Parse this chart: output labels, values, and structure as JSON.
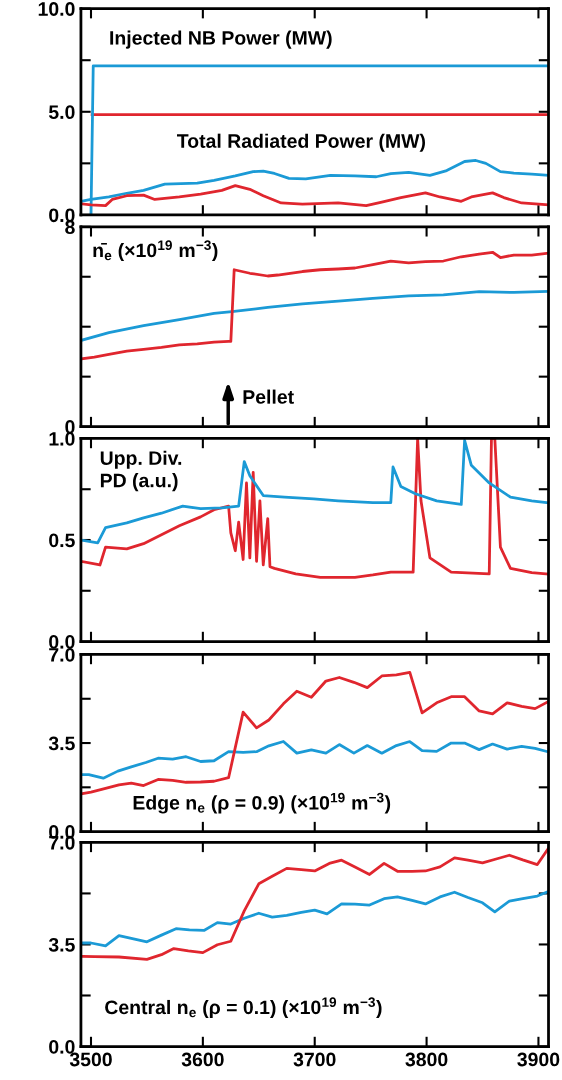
{
  "chart_data": [
    {
      "type": "line",
      "xlim": [
        3491,
        3909
      ],
      "xticks": [
        3500,
        3600,
        3700,
        3800,
        3900
      ],
      "ylim": [
        0,
        10
      ],
      "yticks": [
        {
          "value": 0,
          "label": "0.0"
        },
        {
          "value": 2.5,
          "label": null
        },
        {
          "value": 5,
          "label": "5.0"
        },
        {
          "value": 7.5,
          "label": null
        },
        {
          "value": 10,
          "label": "10.0"
        }
      ],
      "tick_labels": "y",
      "annotations": [
        "Injected NB Power (MW)",
        "Total Radiated Power (MW)"
      ],
      "series": [
        {
          "color": "#1b9ad6",
          "x": [
            3491,
            3500,
            3516,
            3532,
            3547,
            3566,
            3595,
            3610,
            3629,
            3645,
            3654,
            3664,
            3677,
            3692,
            3714,
            3736,
            3755,
            3768,
            3784,
            3803,
            3818,
            3834,
            3844,
            3853,
            3866,
            3878,
            3894,
            3909
          ],
          "values": [
            0.66,
            0.75,
            0.87,
            1.05,
            1.19,
            1.49,
            1.54,
            1.68,
            1.89,
            2.1,
            2.12,
            2.01,
            1.77,
            1.75,
            1.92,
            1.89,
            1.85,
            2.0,
            2.06,
            1.92,
            2.15,
            2.59,
            2.64,
            2.5,
            2.1,
            2.03,
            1.98,
            1.92
          ]
        },
        {
          "color": "#e0262e",
          "x": [
            3501,
            3909
          ],
          "values": [
            4.86,
            4.86
          ]
        },
        {
          "color": "#1b9ad6",
          "x": [
            3500,
            3502,
            3909
          ],
          "values": [
            0,
            7.22,
            7.22
          ]
        },
        {
          "color": "#e0262e",
          "x": [
            3491,
            3500,
            3513,
            3519,
            3532,
            3547,
            3557,
            3579,
            3598,
            3617,
            3629,
            3642,
            3654,
            3670,
            3689,
            3721,
            3746,
            3759,
            3777,
            3799,
            3812,
            3831,
            3840,
            3859,
            3869,
            3885,
            3908
          ],
          "values": [
            0.54,
            0.49,
            0.45,
            0.75,
            0.93,
            0.96,
            0.75,
            0.87,
            1.01,
            1.19,
            1.42,
            1.24,
            0.93,
            0.58,
            0.52,
            0.58,
            0.45,
            0.61,
            0.84,
            1.07,
            0.87,
            0.66,
            0.87,
            1.07,
            0.84,
            0.58,
            0.49
          ]
        }
      ]
    },
    {
      "type": "line",
      "xlim": [
        3491,
        3909
      ],
      "xticks": [
        3500,
        3600,
        3700,
        3800,
        3900
      ],
      "ylim": [
        0,
        8
      ],
      "yticks": [
        0,
        {
          "value": 2,
          "label": null
        },
        {
          "value": 4,
          "label": null
        },
        {
          "value": 6,
          "label": null
        },
        8
      ],
      "tick_labels": "y",
      "annotations": [
        "n̄$_{e}$ (×10$^{19}$ m$^{−3}$)",
        "Pellet"
      ],
      "series": [
        {
          "color": "#1b9ad6",
          "x": [
            3491,
            3516,
            3547,
            3579,
            3610,
            3626,
            3658,
            3689,
            3721,
            3752,
            3784,
            3815,
            3847,
            3878,
            3908
          ],
          "values": [
            3.45,
            3.76,
            4.04,
            4.28,
            4.53,
            4.6,
            4.77,
            4.91,
            5.02,
            5.13,
            5.23,
            5.27,
            5.4,
            5.37,
            5.41
          ]
        },
        {
          "color": "#e0262e",
          "x": [
            3491,
            3503,
            3516,
            3532,
            3547,
            3563,
            3579,
            3595,
            3610,
            3623,
            3625,
            3628,
            3642,
            3658,
            3667,
            3689,
            3705,
            3721,
            3736,
            3752,
            3768,
            3784,
            3799,
            3815,
            3831,
            3847,
            3859,
            3866,
            3878,
            3894,
            3908
          ],
          "values": [
            2.71,
            2.78,
            2.89,
            3.02,
            3.09,
            3.17,
            3.27,
            3.31,
            3.38,
            3.41,
            3.41,
            6.28,
            6.14,
            6.03,
            6.07,
            6.21,
            6.28,
            6.31,
            6.35,
            6.49,
            6.63,
            6.56,
            6.61,
            6.63,
            6.8,
            6.91,
            6.98,
            6.77,
            6.87,
            6.87,
            6.94
          ]
        }
      ]
    },
    {
      "type": "line",
      "xlim": [
        3491,
        3909
      ],
      "xticks": [
        3500,
        3600,
        3700,
        3800,
        3900
      ],
      "ylim": [
        0,
        1
      ],
      "yticks": [
        {
          "value": 0,
          "label": "0.0"
        },
        {
          "value": 0.25,
          "label": null
        },
        0.5,
        {
          "value": 0.75,
          "label": null
        },
        {
          "value": 1,
          "label": "1.0"
        }
      ],
      "tick_labels": "y",
      "annotations": [
        "Upp. Div.\nPD (a.u.)"
      ],
      "series": [
        {
          "color": "#e0262e",
          "x": [
            3491,
            3508,
            3513,
            3532,
            3547,
            3563,
            3579,
            3598,
            3610,
            3623,
            3625,
            3629,
            3632,
            3636,
            3639,
            3642,
            3645,
            3648,
            3651,
            3654,
            3658,
            3660,
            3664,
            3683,
            3705,
            3736,
            3752,
            3768,
            3788,
            3792,
            3795,
            3803,
            3822,
            3856,
            3858,
            3861,
            3866,
            3875,
            3894,
            3908
          ],
          "values": [
            0.395,
            0.377,
            0.465,
            0.456,
            0.482,
            0.526,
            0.57,
            0.614,
            0.649,
            0.667,
            0.535,
            0.447,
            0.588,
            0.404,
            0.781,
            0.412,
            0.833,
            0.395,
            0.693,
            0.377,
            0.605,
            0.368,
            0.36,
            0.333,
            0.316,
            0.316,
            0.328,
            0.342,
            0.342,
            1.0,
            0.693,
            0.412,
            0.342,
            0.333,
            1.0,
            1.0,
            0.465,
            0.36,
            0.339,
            0.333
          ]
        },
        {
          "color": "#1b9ad6",
          "x": [
            3491,
            3506,
            3513,
            3532,
            3547,
            3563,
            3582,
            3598,
            3617,
            3632,
            3637,
            3642,
            3654,
            3673,
            3699,
            3721,
            3752,
            3768,
            3770,
            3777,
            3790,
            3809,
            3831,
            3834,
            3840,
            3856,
            3875,
            3894,
            3908
          ],
          "values": [
            0.5,
            0.486,
            0.561,
            0.584,
            0.609,
            0.632,
            0.667,
            0.654,
            0.658,
            0.667,
            0.886,
            0.816,
            0.719,
            0.711,
            0.702,
            0.693,
            0.684,
            0.684,
            0.86,
            0.763,
            0.728,
            0.693,
            0.675,
            0.991,
            0.868,
            0.781,
            0.711,
            0.693,
            0.684
          ]
        }
      ]
    },
    {
      "type": "line",
      "xlim": [
        3491,
        3909
      ],
      "xticks": [
        3500,
        3600,
        3700,
        3800,
        3900
      ],
      "ylim": [
        0,
        7
      ],
      "yticks": [
        {
          "value": 0,
          "label": "0.0"
        },
        {
          "value": 1.75,
          "label": null
        },
        3.5,
        {
          "value": 5.25,
          "label": null
        },
        {
          "value": 7,
          "label": "7.0"
        }
      ],
      "tick_labels": "y",
      "annotations": [
        "Edge n$_{e}$ (ρ = 0.9) (×10$^{19}$ m$^{−3}$)"
      ],
      "series": [
        {
          "color": "#1b9ad6",
          "x": [
            3491,
            3498,
            3511,
            3524,
            3536,
            3549,
            3560,
            3573,
            3585,
            3598,
            3610,
            3623,
            3636,
            3648,
            3659,
            3672,
            3684,
            3697,
            3710,
            3722,
            3735,
            3747,
            3760,
            3773,
            3785,
            3796,
            3809,
            3822,
            3834,
            3847,
            3859,
            3872,
            3885,
            3897,
            3908
          ],
          "values": [
            2.25,
            2.25,
            2.11,
            2.39,
            2.56,
            2.73,
            2.9,
            2.86,
            2.96,
            2.77,
            2.8,
            3.16,
            3.13,
            3.16,
            3.39,
            3.56,
            3.1,
            3.23,
            3.1,
            3.44,
            3.1,
            3.4,
            3.1,
            3.4,
            3.56,
            3.2,
            3.17,
            3.5,
            3.5,
            3.24,
            3.46,
            3.26,
            3.37,
            3.29,
            3.16
          ]
        },
        {
          "color": "#e0262e",
          "x": [
            3491,
            3500,
            3513,
            3525,
            3536,
            3547,
            3560,
            3573,
            3585,
            3598,
            3610,
            3623,
            3636,
            3648,
            3659,
            3672,
            3684,
            3697,
            3710,
            3722,
            3735,
            3747,
            3760,
            3773,
            3785,
            3796,
            3809,
            3822,
            3834,
            3847,
            3859,
            3872,
            3885,
            3897,
            3908
          ],
          "values": [
            1.49,
            1.56,
            1.71,
            1.85,
            1.92,
            1.82,
            2.06,
            2.02,
            1.95,
            1.96,
            1.99,
            2.13,
            4.72,
            4.1,
            4.41,
            5.05,
            5.55,
            5.31,
            5.95,
            6.09,
            5.9,
            5.69,
            6.15,
            6.19,
            6.29,
            4.69,
            5.09,
            5.33,
            5.33,
            4.77,
            4.65,
            5.09,
            4.95,
            4.86,
            5.12
          ]
        }
      ]
    },
    {
      "type": "line",
      "xlim": [
        3491,
        3909
      ],
      "xticks": [
        3500,
        3600,
        3700,
        3800,
        3900
      ],
      "ylim": [
        0,
        7
      ],
      "yticks": [
        {
          "value": 0,
          "label": "0.0"
        },
        {
          "value": 1.75,
          "label": null
        },
        3.5,
        {
          "value": 5.25,
          "label": null
        },
        {
          "value": 7,
          "label": "7.0"
        }
      ],
      "annotations": [
        "Central n$_{e}$ (ρ = 0.1) (×10$^{19}$ m$^{−3}$)"
      ],
      "series": [
        {
          "color": "#1b9ad6",
          "x": [
            3493,
            3500,
            3513,
            3525,
            3550,
            3563,
            3576,
            3588,
            3601,
            3613,
            3625,
            3637,
            3650,
            3662,
            3675,
            3688,
            3700,
            3711,
            3724,
            3736,
            3749,
            3762,
            3774,
            3787,
            3799,
            3812,
            3825,
            3837,
            3850,
            3861,
            3874,
            3886,
            3899,
            3909
          ],
          "values": [
            3.55,
            3.55,
            3.45,
            3.8,
            3.59,
            3.82,
            4.04,
            4.0,
            3.98,
            4.25,
            4.2,
            4.4,
            4.57,
            4.44,
            4.5,
            4.6,
            4.68,
            4.55,
            4.89,
            4.88,
            4.85,
            5.07,
            5.13,
            5.01,
            4.89,
            5.13,
            5.29,
            5.11,
            4.93,
            4.62,
            4.99,
            5.07,
            5.16,
            5.32
          ]
        },
        {
          "color": "#e0262e",
          "x": [
            3493,
            3503,
            3525,
            3550,
            3563,
            3574,
            3587,
            3600,
            3613,
            3625,
            3637,
            3650,
            3662,
            3675,
            3688,
            3700,
            3713,
            3724,
            3736,
            3749,
            3762,
            3774,
            3787,
            3799,
            3812,
            3825,
            3837,
            3850,
            3863,
            3874,
            3886,
            3899,
            3909
          ],
          "values": [
            3.09,
            3.08,
            3.07,
            2.99,
            3.15,
            3.36,
            3.28,
            3.22,
            3.49,
            3.61,
            4.65,
            5.58,
            5.84,
            6.11,
            6.07,
            6.02,
            6.28,
            6.39,
            6.16,
            5.9,
            6.28,
            6.01,
            6.01,
            6.02,
            6.16,
            6.47,
            6.39,
            6.3,
            6.44,
            6.56,
            6.4,
            6.24,
            6.8
          ]
        }
      ]
    }
  ]
}
